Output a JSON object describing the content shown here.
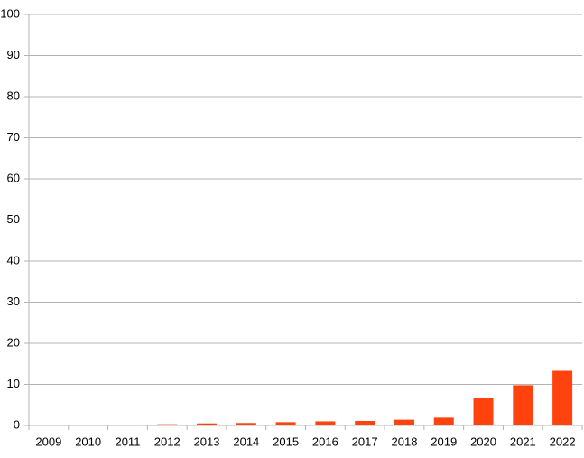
{
  "chart_data": {
    "type": "bar",
    "categories": [
      "2009",
      "2010",
      "2011",
      "2012",
      "2013",
      "2014",
      "2015",
      "2016",
      "2017",
      "2018",
      "2019",
      "2020",
      "2021",
      "2022"
    ],
    "values": [
      0,
      0,
      0.1,
      0.3,
      0.5,
      0.6,
      0.8,
      1.0,
      1.1,
      1.4,
      1.9,
      6.6,
      9.8,
      13.3
    ],
    "color": "#ff420e",
    "ylim": [
      0,
      100
    ],
    "yticks": [
      0,
      10,
      20,
      30,
      40,
      50,
      60,
      70,
      80,
      90,
      100
    ],
    "grid": true
  }
}
